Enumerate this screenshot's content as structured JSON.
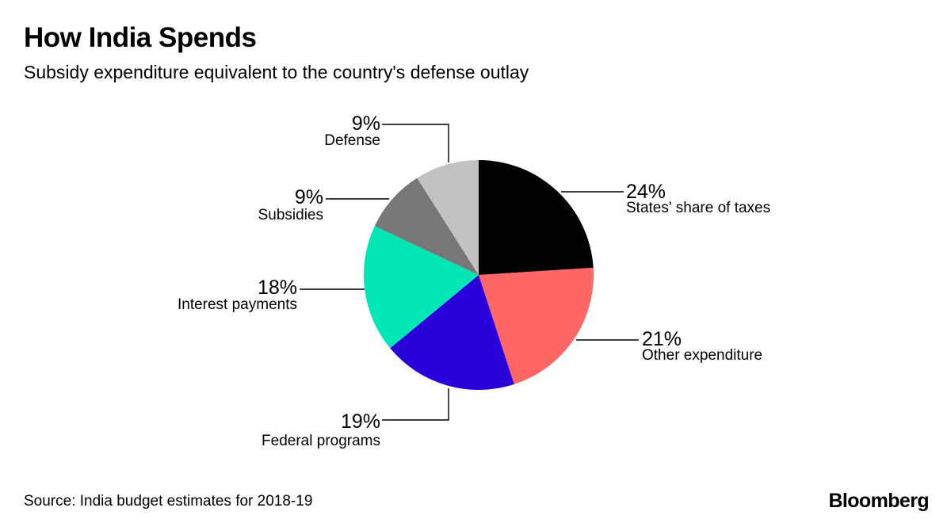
{
  "header": {
    "title": "How India Spends",
    "subtitle": "Subsidy expenditure equivalent to the country's defense outlay"
  },
  "footer": {
    "source": "Source: India budget estimates for 2018-19",
    "brand": "Bloomberg"
  },
  "chart_data": {
    "type": "pie",
    "title": "How India Spends",
    "subtitle": "Subsidy expenditure equivalent to the country's defense outlay",
    "start": "12 o'clock",
    "direction": "clockwise",
    "slices": [
      {
        "label": "States' share of taxes",
        "value": 24,
        "value_label": "24%",
        "color": "#000000"
      },
      {
        "label": "Other expenditure",
        "value": 21,
        "value_label": "21%",
        "color": "#ff6666"
      },
      {
        "label": "Federal programs",
        "value": 19,
        "value_label": "19%",
        "color": "#2900d9"
      },
      {
        "label": "Interest payments",
        "value": 18,
        "value_label": "18%",
        "color": "#00e6b4"
      },
      {
        "label": "Subsidies",
        "value": 9,
        "value_label": "9%",
        "color": "#777777"
      },
      {
        "label": "Defense",
        "value": 9,
        "value_label": "9%",
        "color": "#c2c2c2"
      }
    ]
  }
}
